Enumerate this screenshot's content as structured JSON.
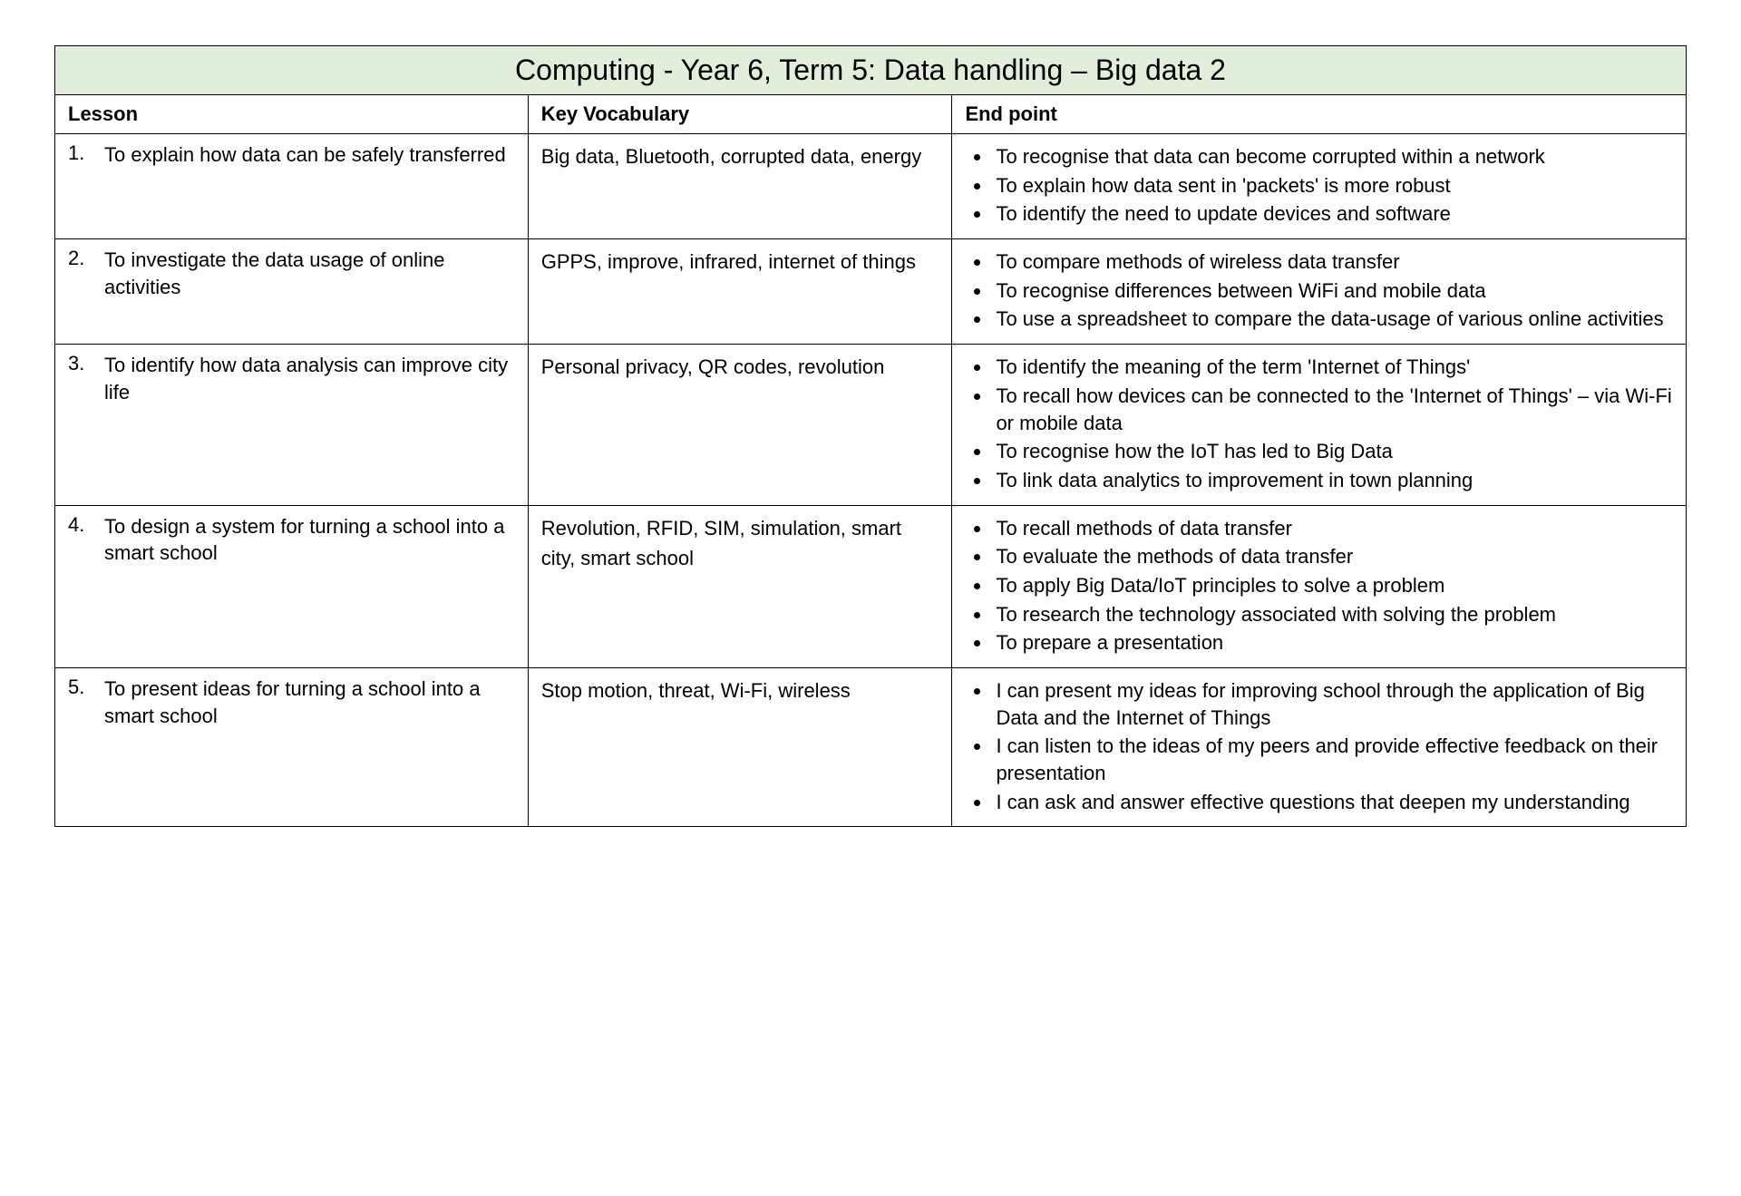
{
  "title": "Computing - Year 6, Term 5: Data handling – Big data 2",
  "columns": {
    "lesson": "Lesson",
    "vocab": "Key Vocabulary",
    "endpoint": "End point"
  },
  "colwidths": {
    "lesson": "29%",
    "vocab": "26%",
    "endpoint": "45%"
  },
  "colors": {
    "title_bg": "#e1eed9",
    "border": "#000000",
    "text": "#000000",
    "page_bg": "#ffffff"
  },
  "typography": {
    "font_family": "Comic Sans MS",
    "title_fontsize_pt": 24,
    "header_fontsize_pt": 16,
    "body_fontsize_pt": 16
  },
  "rows": [
    {
      "num": "1.",
      "lesson": "To explain how data can be safely transferred",
      "vocab": "Big data, Bluetooth, corrupted data, energy",
      "endpoints": [
        "To recognise that data can become corrupted within a network",
        "To explain how data sent in 'packets' is more robust",
        "To identify the need to update devices and software"
      ]
    },
    {
      "num": "2.",
      "lesson": "To investigate the data usage of online activities",
      "vocab": "GPPS, improve, infrared, internet of things",
      "endpoints": [
        "To compare methods of wireless data transfer",
        "To recognise differences between WiFi and mobile data",
        "To use a spreadsheet to compare the data-usage of various online activities"
      ]
    },
    {
      "num": "3.",
      "lesson": "To identify how data analysis can improve city life",
      "vocab": "Personal privacy, QR codes, revolution",
      "endpoints": [
        "To identify the meaning of the term 'Internet of Things'",
        "To recall how devices can be connected to the 'Internet of Things' – via Wi-Fi or mobile data",
        "To recognise how the IoT has led to Big Data",
        "To link data analytics to improvement in town planning"
      ]
    },
    {
      "num": "4.",
      "lesson": "To design a system for turning a school into a smart school",
      "vocab": "Revolution, RFID, SIM, simulation, smart city, smart school",
      "endpoints": [
        "To recall methods of data transfer",
        "To evaluate the methods of data transfer",
        "To apply Big Data/IoT principles to solve a problem",
        "To research the technology associated with solving the problem",
        "To prepare a presentation"
      ]
    },
    {
      "num": "5.",
      "lesson": "To present ideas for turning a school into a smart school",
      "vocab": "Stop motion, threat, Wi-Fi, wireless",
      "endpoints": [
        "I can present my ideas for improving school through the application of Big Data and the Internet of Things",
        "I can listen to the ideas of my peers and provide effective feedback on their presentation",
        "I can ask and answer effective questions that deepen my understanding"
      ]
    }
  ]
}
